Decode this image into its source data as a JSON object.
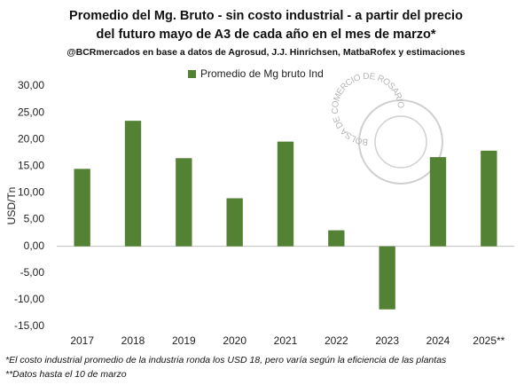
{
  "chart_data": {
    "type": "bar",
    "title": [
      "Promedio del Mg. Bruto - sin costo industrial - a partir del precio",
      "del futuro mayo de A3 de cada año en el mes de marzo*"
    ],
    "subtitle": "@BCRmercados  en base a datos de Agrosud, J.J. Hinrichsen,  MatbaRofex y estimaciones",
    "y_label": "USD/Tn",
    "categories": [
      "2017",
      "2018",
      "2019",
      "2020",
      "2021",
      "2022",
      "2023",
      "2024",
      "2025**"
    ],
    "series": [
      {
        "name": "Promedio de Mg bruto Ind",
        "color": "#548235",
        "values": [
          14.5,
          23.5,
          16.5,
          9.0,
          19.6,
          3.0,
          -11.8,
          16.7,
          17.9
        ]
      }
    ],
    "ylim": [
      -15,
      30
    ],
    "yticks": [
      {
        "value": 30,
        "label": "30,00"
      },
      {
        "value": 25,
        "label": "25,00"
      },
      {
        "value": 20,
        "label": "20,00"
      },
      {
        "value": 15,
        "label": "15,00"
      },
      {
        "value": 10,
        "label": "10,00"
      },
      {
        "value": 5,
        "label": "5,00"
      },
      {
        "value": 0,
        "label": "0,00"
      },
      {
        "value": -5,
        "label": "-5,00"
      },
      {
        "value": -10,
        "label": "-10,00"
      },
      {
        "value": -15,
        "label": "-15,00"
      }
    ],
    "grid": false,
    "legend": "top",
    "notes": [
      "*El costo industrial promedio de la industria ronda los USD 18, pero varía según la eficiencia de las plantas",
      "**Datos hasta el 10 de marzo"
    ],
    "watermark": "BOLSA DE COMERCIO DE ROSARIO"
  }
}
